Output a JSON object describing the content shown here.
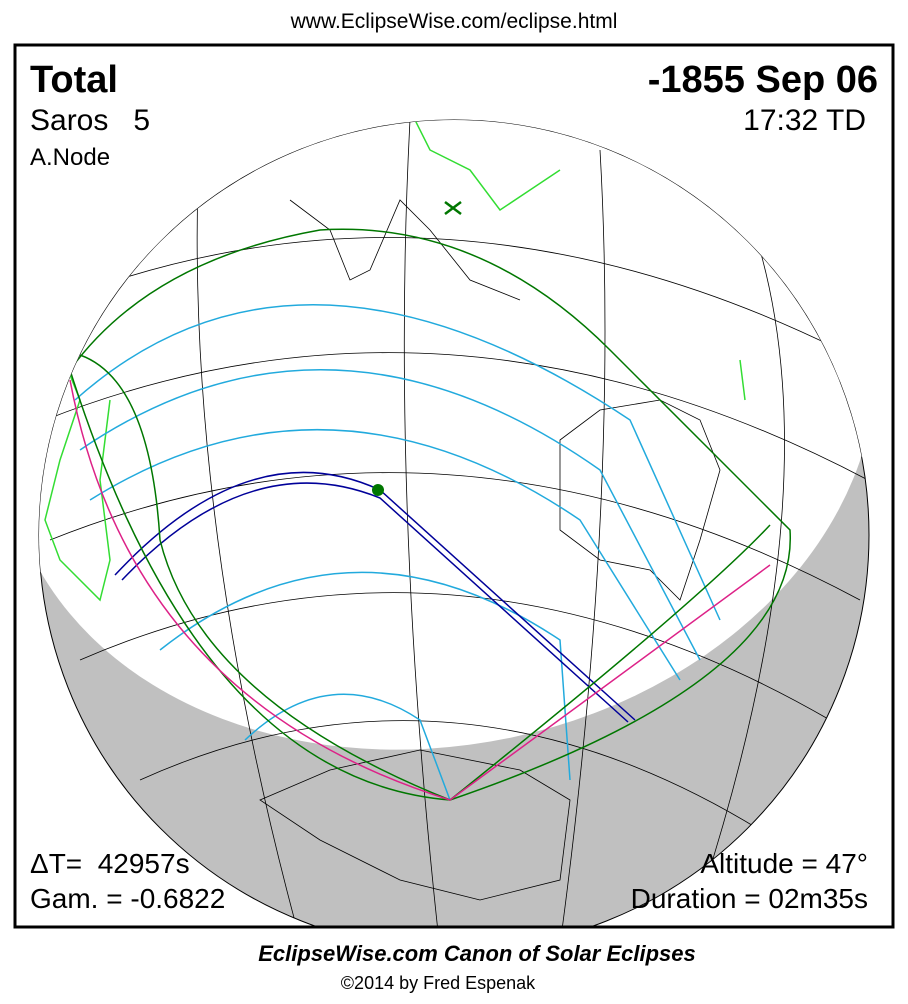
{
  "header": {
    "url": "www.EclipseWise.com/eclipse.html"
  },
  "panel": {
    "eclipse_type": "Total",
    "saros": "Saros   5",
    "node": "A.Node",
    "date": "-1855 Sep 06",
    "time": "17:32 TD",
    "delta_t": "ΔT=  42957s",
    "gamma": "Gam. = -0.6822",
    "altitude": "Altitude = 47°",
    "duration": "Duration = 02m35s"
  },
  "footer": {
    "title": "EclipseWise.com Canon of Solar Eclipses",
    "copyright": "©2014 by Fred Espenak"
  }
}
